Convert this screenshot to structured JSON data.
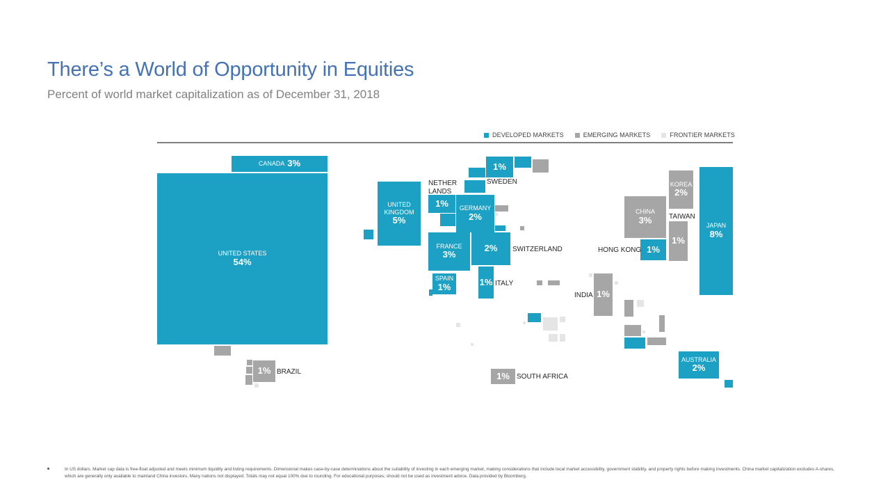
{
  "header": {
    "title": "There’s a World of Opportunity in Equities",
    "subtitle": "Percent of world market capitalization as of December 31, 2018"
  },
  "colors": {
    "title": "#4472b4",
    "developed": "#1ca0c4",
    "emerging": "#a6a6a6",
    "frontier": "#e5e5e5"
  },
  "chart_data": {
    "type": "treemap-cartogram",
    "title": "There’s a World of Opportunity in Equities",
    "subtitle": "Percent of world market capitalization as of December 31, 2018",
    "unit": "%",
    "legend": [
      {
        "key": "developed",
        "label": "DEVELOPED MARKETS"
      },
      {
        "key": "emerging",
        "label": "EMERGING MARKETS"
      },
      {
        "key": "frontier",
        "label": "FRONTIER MARKETS"
      }
    ],
    "labeled_markets": [
      {
        "name": "UNITED STATES",
        "value": "54%",
        "category": "developed"
      },
      {
        "name": "CANADA",
        "value": "3%",
        "category": "developed"
      },
      {
        "name": "UNITED KINGDOM",
        "value": "5%",
        "category": "developed"
      },
      {
        "name": "NETHERLANDS",
        "value": "1%",
        "category": "developed"
      },
      {
        "name": "SWEDEN",
        "value": "1%",
        "category": "developed"
      },
      {
        "name": "GERMANY",
        "value": "2%",
        "category": "developed"
      },
      {
        "name": "FRANCE",
        "value": "3%",
        "category": "developed"
      },
      {
        "name": "SWITZERLAND",
        "value": "2%",
        "category": "developed"
      },
      {
        "name": "SPAIN",
        "value": "1%",
        "category": "developed"
      },
      {
        "name": "ITALY",
        "value": "1%",
        "category": "developed"
      },
      {
        "name": "SOUTH AFRICA",
        "value": "1%",
        "category": "emerging"
      },
      {
        "name": "INDIA",
        "value": "1%",
        "category": "emerging"
      },
      {
        "name": "CHINA",
        "value": "3%",
        "category": "emerging"
      },
      {
        "name": "HONG KONG",
        "value": "1%",
        "category": "developed"
      },
      {
        "name": "KOREA",
        "value": "2%",
        "category": "emerging"
      },
      {
        "name": "TAIWAN",
        "value": "1%",
        "category": "emerging"
      },
      {
        "name": "JAPAN",
        "value": "8%",
        "category": "developed"
      },
      {
        "name": "AUSTRALIA",
        "value": "2%",
        "category": "developed"
      },
      {
        "name": "BRAZIL",
        "value": "1%",
        "category": "emerging"
      }
    ]
  },
  "footnote": "In US dollars. Market cap data is free-float adjusted and meets minimum liquidity and listing requirements. Dimensional makes case-by-case determinations about the suitability of investing in each emerging market, making considerations that include local market accessibility, government stability, and property rights before making investments. China market capitalization excludes A-shares, which are generally only available to mainland China investors. Many nations not displayed. Totals may not equal 100% due to rounding. For educational purposes; should not be used as investment advice. Data provided by Bloomberg."
}
